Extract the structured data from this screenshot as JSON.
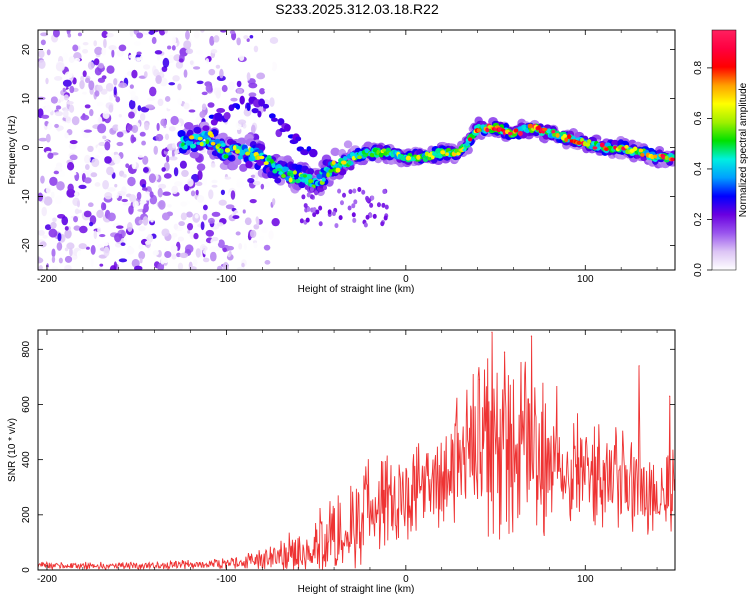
{
  "title": "S233.2025.312.03.18.R22",
  "colors": {
    "snr_line": "#ee3333",
    "frame": "#000000",
    "background": "#ffffff"
  },
  "chart_data": [
    {
      "type": "heatmap",
      "title": "S233.2025.312.03.18.R22",
      "xlabel": "Height of straight line (km)",
      "ylabel": "Frequency (Hz)",
      "xlim": [
        -205,
        150
      ],
      "ylim": [
        -25,
        24
      ],
      "xticks": [
        -200,
        -100,
        0,
        100
      ],
      "xtick_labels": [
        "-200",
        "-100",
        "0",
        "100"
      ],
      "yticks": [
        -20,
        -10,
        0,
        10,
        20
      ],
      "ytick_labels": [
        "-20",
        "-10",
        "0",
        "10",
        "20"
      ],
      "ridge": {
        "description": "dominant frequency ridge (Hz) vs height (km)",
        "x": [
          -125,
          -110,
          -100,
          -90,
          -80,
          -70,
          -60,
          -50,
          -40,
          -30,
          -20,
          -10,
          0,
          10,
          20,
          30,
          35,
          40,
          50,
          60,
          70,
          80,
          90,
          100,
          110,
          120,
          130,
          140,
          150
        ],
        "y": [
          1,
          2,
          -1,
          -1,
          -2,
          -5,
          -6,
          -7,
          -4,
          -2,
          -1,
          -1,
          -2,
          -2,
          -1,
          -1,
          1,
          4,
          4,
          3,
          4,
          3,
          2,
          1,
          0,
          0,
          -1,
          -2,
          -2
        ]
      },
      "noise_region_km": [
        -205,
        -95
      ],
      "colorbar": {
        "label": "Normalized spectral amplitude",
        "range": [
          0.0,
          0.95
        ],
        "ticks": [
          0.0,
          0.2,
          0.4,
          0.6,
          0.8
        ],
        "tick_labels": [
          "0.0",
          "0.2",
          "0.4",
          "0.6",
          "0.8"
        ],
        "stops": [
          "#ffffff",
          "#dcc4f5",
          "#9a55ee",
          "#6a00e0",
          "#0000ff",
          "#00a0ff",
          "#00f0e0",
          "#00e000",
          "#a0f000",
          "#ffff00",
          "#ffa000",
          "#ff0000",
          "#ff0040",
          "#ff2060"
        ]
      }
    },
    {
      "type": "line",
      "xlabel": "Height of straight line (km)",
      "ylabel": "SNR (10 * v/v)",
      "xlim": [
        -205,
        150
      ],
      "ylim": [
        0,
        870
      ],
      "xticks": [
        -200,
        -100,
        0,
        100
      ],
      "xtick_labels": [
        "-200",
        "-100",
        "0",
        "100"
      ],
      "yticks": [
        0,
        200,
        400,
        600,
        800
      ],
      "ytick_labels": [
        "0",
        "200",
        "400",
        "600",
        "800"
      ],
      "series": [
        {
          "name": "SNR",
          "envelope_x": [
            -205,
            -150,
            -110,
            -90,
            -80,
            -70,
            -60,
            -50,
            -40,
            -30,
            -20,
            -10,
            0,
            10,
            20,
            25,
            30,
            40,
            50,
            60,
            70,
            80,
            90,
            100,
            110,
            120,
            130,
            140,
            150
          ],
          "envelope_mean": [
            15,
            15,
            20,
            30,
            40,
            55,
            70,
            90,
            130,
            170,
            220,
            260,
            280,
            290,
            300,
            340,
            420,
            420,
            440,
            430,
            420,
            410,
            400,
            360,
            330,
            320,
            310,
            290,
            310
          ],
          "envelope_amp": [
            15,
            15,
            20,
            30,
            40,
            60,
            90,
            120,
            160,
            190,
            200,
            190,
            180,
            170,
            170,
            200,
            270,
            330,
            380,
            340,
            330,
            290,
            250,
            210,
            190,
            200,
            230,
            220,
            230
          ],
          "peaks": [
            {
              "x": 48,
              "y": 862
            },
            {
              "x": 70,
              "y": 848
            },
            {
              "x": 55,
              "y": 790
            },
            {
              "x": 130,
              "y": 740
            },
            {
              "x": 41,
              "y": 690
            },
            {
              "x": 147,
              "y": 630
            }
          ]
        }
      ]
    }
  ]
}
